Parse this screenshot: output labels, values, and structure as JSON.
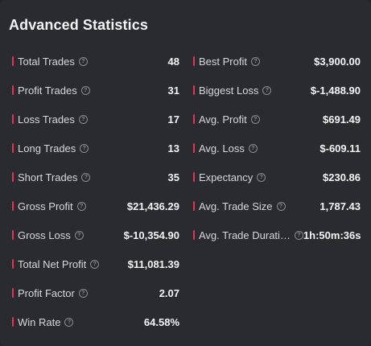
{
  "title": "Advanced Statistics",
  "help_glyph": "?",
  "left": [
    {
      "label": "Total Trades",
      "value": "48"
    },
    {
      "label": "Profit Trades",
      "value": "31"
    },
    {
      "label": "Loss Trades",
      "value": "17"
    },
    {
      "label": "Long Trades",
      "value": "13"
    },
    {
      "label": "Short Trades",
      "value": "35"
    },
    {
      "label": "Gross Profit",
      "value": "$21,436.29"
    },
    {
      "label": "Gross Loss",
      "value": "$-10,354.90"
    },
    {
      "label": "Total Net Profit",
      "value": "$11,081.39"
    },
    {
      "label": "Profit Factor",
      "value": "2.07"
    },
    {
      "label": "Win Rate",
      "value": "64.58%"
    }
  ],
  "right": [
    {
      "label": "Best Profit",
      "value": "$3,900.00"
    },
    {
      "label": "Biggest Loss",
      "value": "$-1,488.90"
    },
    {
      "label": "Avg. Profit",
      "value": "$691.49"
    },
    {
      "label": "Avg. Loss",
      "value": "$-609.11"
    },
    {
      "label": "Expectancy",
      "value": "$230.86"
    },
    {
      "label": "Avg. Trade Size",
      "value": "1,787.43"
    },
    {
      "label": "Avg. Trade Durati…",
      "value": "1h:50m:36s"
    }
  ],
  "colors": {
    "accent": "#e0355a",
    "background": "#2a2b2f"
  }
}
